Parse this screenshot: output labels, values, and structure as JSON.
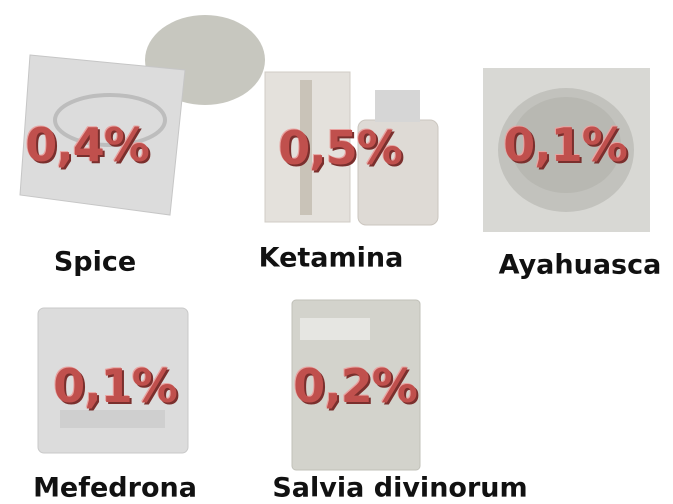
{
  "items": [
    {
      "label": "Spice",
      "value": "0,4%"
    },
    {
      "label": "Ketamina",
      "value": "0,5%"
    },
    {
      "label": "Ayahuasca",
      "value": "0,1%"
    },
    {
      "label": "Mefedrona",
      "value": "0,1%"
    },
    {
      "label": "Salvia divinorum",
      "value": "0,2%"
    }
  ]
}
